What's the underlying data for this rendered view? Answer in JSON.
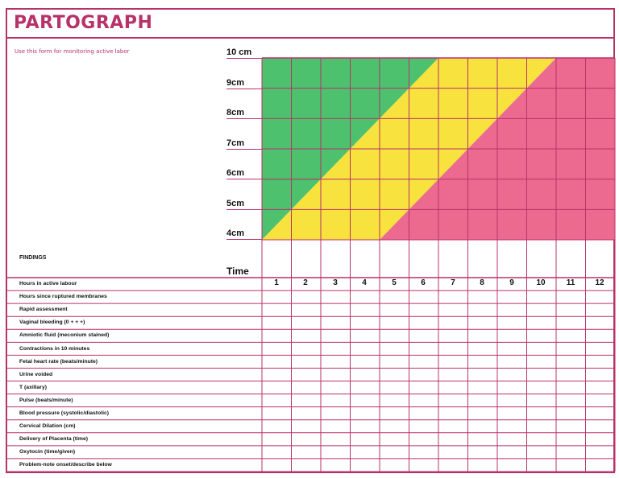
{
  "title": "PARTOGRAPH",
  "subtitle": "Use this form for monitoring active labor",
  "dilation_scale": [
    "10 cm",
    "9cm",
    "8cm",
    "7cm",
    "6cm",
    "5cm",
    "4cm"
  ],
  "findings_heading": "FINDINGS",
  "time_label": "Time",
  "hours": [
    "1",
    "2",
    "3",
    "4",
    "5",
    "6",
    "7",
    "8",
    "9",
    "10",
    "11",
    "12"
  ],
  "rows": [
    "Hours in active labour",
    "Hours since ruptured membranes",
    "Rapid assessment",
    "Vaginal bleeding (0 + + +)",
    "Amniotic fluid (meconium stained)",
    "Contractions in 10 minutes",
    "Fetal heart rate (beats/minute)",
    "Urine voided",
    "T (axillary)",
    "Pulse (beats/minute)",
    "Blood pressure (systolic/diastolic)",
    "Cervical Dilation (cm)",
    "Delivery of Placenta (time)",
    "Oxytocin (time/given)",
    "Problem-note onset/describe below"
  ],
  "colors": {
    "frame": "#b8326a",
    "green_zone": "#4dc16e",
    "yellow_zone": "#f7e23e",
    "pink_zone": "#ec6a90"
  }
}
